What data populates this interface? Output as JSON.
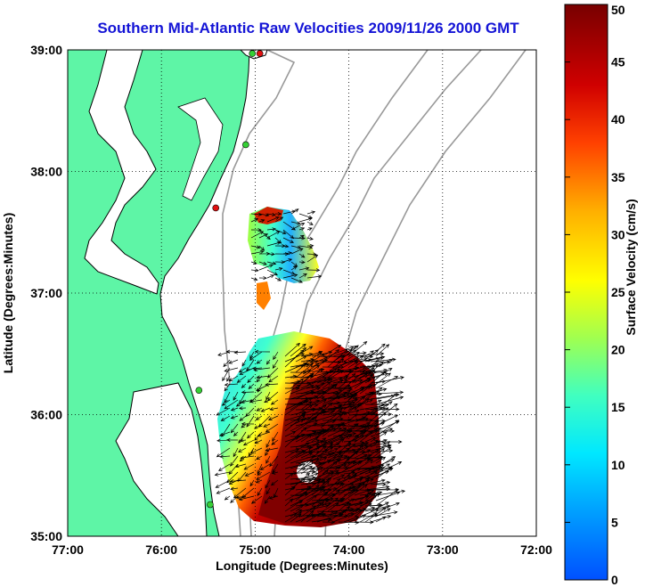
{
  "title": "Southern Mid-Atlantic Raw Velocities 2009/11/26 2000 GMT",
  "x_axis": {
    "label": "Longitude (Degrees:Minutes)",
    "ticks": [
      "77:00",
      "76:00",
      "75:00",
      "74:00",
      "73:00",
      "72:00"
    ]
  },
  "y_axis": {
    "label": "Latitude (Degrees:Minutes)",
    "ticks": [
      "39:00",
      "38:00",
      "37:00",
      "36:00",
      "35:00"
    ]
  },
  "colorbar": {
    "label": "Surface Velocity (cm/s)",
    "ticks": [
      "50",
      "45",
      "40",
      "35",
      "30",
      "25",
      "20",
      "15",
      "10",
      "5",
      "0"
    ],
    "min": 0,
    "max": 50,
    "colormap": "jet"
  },
  "extent": {
    "lon_west": -77,
    "lon_east": -72,
    "lat_south": 35,
    "lat_north": 39
  },
  "grid": "dotted",
  "land_color": "#5ef5a6",
  "coastline_color": "#000000",
  "bathymetry_color": "#999999",
  "station_markers": [
    {
      "color": "#e01010",
      "lon": -74.95,
      "lat": 38.97
    },
    {
      "color": "#35d035",
      "lon": -75.03,
      "lat": 38.97
    },
    {
      "color": "#35d035",
      "lon": -75.1,
      "lat": 38.22
    },
    {
      "color": "#e01010",
      "lon": -75.42,
      "lat": 37.7
    },
    {
      "color": "#35d035",
      "lon": -75.6,
      "lat": 36.2
    },
    {
      "color": "#35d035",
      "lon": -75.48,
      "lat": 35.26
    }
  ]
}
